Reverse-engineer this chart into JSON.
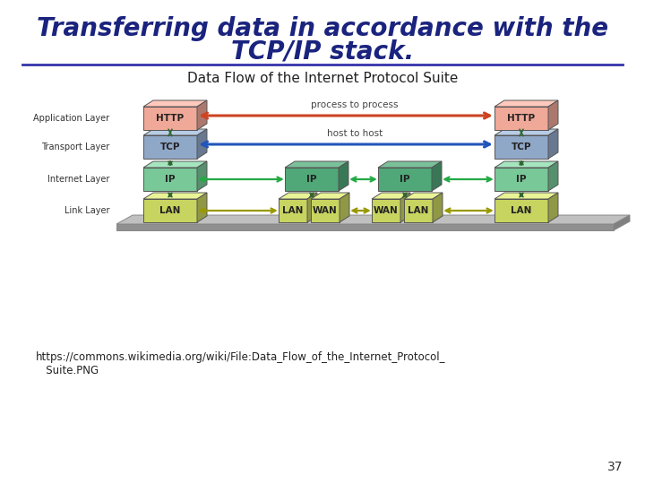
{
  "title_line1": "Transferring data in accordance with the",
  "title_line2": "TCP/IP stack.",
  "title_color": "#1a237e",
  "title_fontsize": 20,
  "subtitle": "Data Flow of the Internet Protocol Suite",
  "subtitle_fontsize": 11,
  "url_line1": "https://commons.wikimedia.org/wiki/File:Data_Flow_of_the_Internet_Protocol_",
  "url_line2": "   Suite.PNG",
  "page_number": "37",
  "bg_color": "#ffffff",
  "separator_color": "#3333aa",
  "http_color": "#f0a898",
  "tcp_color": "#90a8c8",
  "ip_color": "#78c898",
  "lan_color": "#c8d460",
  "wan_color": "#c8d460",
  "ip_router_color": "#50a878",
  "platform_top_color": "#c0c0c0",
  "platform_side_color": "#909090",
  "process_arrow_color": "#cc4422",
  "host_arrow_color": "#2255bb",
  "net_arrow_color": "#22aa44",
  "link_arrow_color": "#999900",
  "vert_arrow_color": "#336633",
  "box_edge_color": "#555555",
  "layer_label_color": "#333333",
  "text_color": "#444444"
}
